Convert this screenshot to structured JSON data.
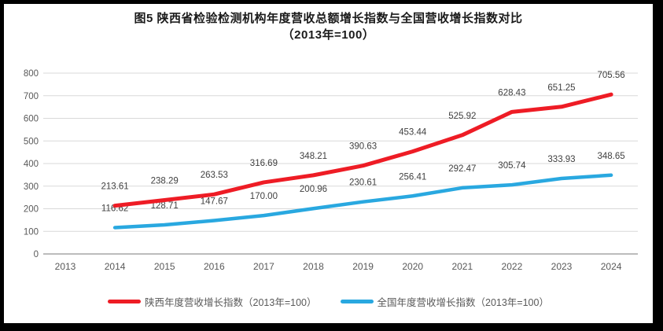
{
  "chart_data": {
    "type": "line",
    "title": "图5  陕西省检验检测机构年度营收总额增长指数与全国营收增长指数对比",
    "subtitle": "（2013年=100）",
    "x": [
      2013,
      2014,
      2015,
      2016,
      2017,
      2018,
      2019,
      2020,
      2021,
      2022,
      2023,
      2024
    ],
    "yticks": [
      0,
      100,
      200,
      300,
      400,
      500,
      600,
      700,
      800
    ],
    "ylim": [
      0,
      800
    ],
    "grid": "horizontal",
    "legend_position": "bottom",
    "series": [
      {
        "name": "陕西年度营收增长指数（2013年=100）",
        "color": "#ee1c25",
        "width": 5,
        "x_start": 2014,
        "values": [
          213.61,
          238.29,
          263.53,
          316.69,
          348.21,
          390.63,
          453.44,
          525.92,
          628.43,
          651.25,
          705.56
        ]
      },
      {
        "name": "全国年度营收增长指数（2013年=100）",
        "color": "#29a8e0",
        "width": 4.5,
        "x_start": 2014,
        "values": [
          116.62,
          128.71,
          147.67,
          170.0,
          200.96,
          230.61,
          256.41,
          292.47,
          305.74,
          333.93,
          348.65
        ]
      }
    ],
    "point_label_decimals": 2,
    "colors": {
      "grid": "#d9d9d9",
      "axis": "#a6a6a6",
      "tick_text": "#595959",
      "point_label_text": "#404040"
    }
  }
}
